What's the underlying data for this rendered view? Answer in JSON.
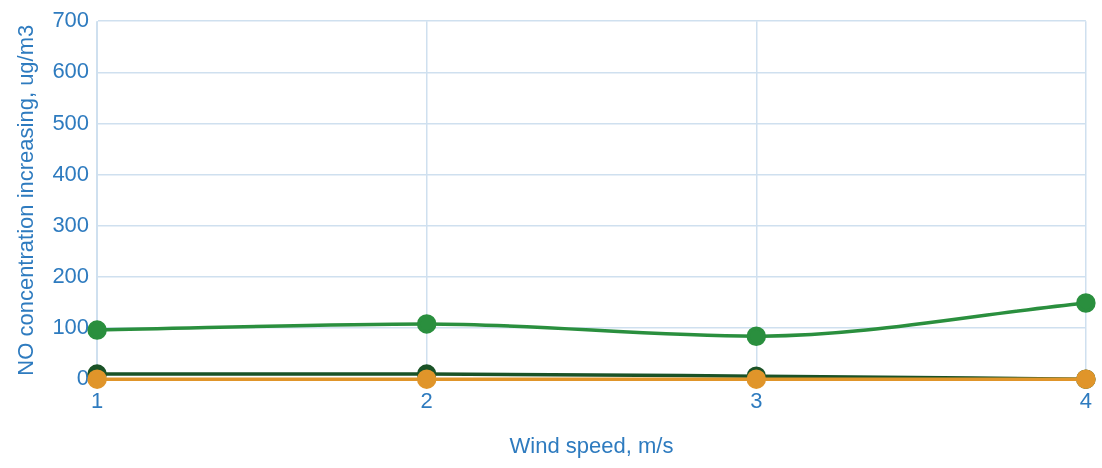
{
  "chart_data": {
    "type": "line",
    "xlabel": "Wind speed, m/s",
    "ylabel": "NO concentration increasing, ug/m3",
    "x": [
      1,
      2,
      3,
      4
    ],
    "xlim": [
      1,
      4
    ],
    "xticks": [
      1,
      2,
      3,
      4
    ],
    "ylim": [
      0,
      700
    ],
    "yticks": [
      0,
      100,
      200,
      300,
      400,
      500,
      600,
      700
    ],
    "grid": true,
    "legend": false,
    "marker": "circle",
    "line_style": "solid",
    "series": [
      {
        "color": "#2a8f3e",
        "values": [
          96,
          108,
          84,
          149
        ]
      },
      {
        "color": "#1a5226",
        "values": [
          10,
          10,
          6,
          0
        ]
      },
      {
        "color": "#e0952a",
        "values": [
          0,
          0,
          0,
          0
        ]
      }
    ]
  }
}
